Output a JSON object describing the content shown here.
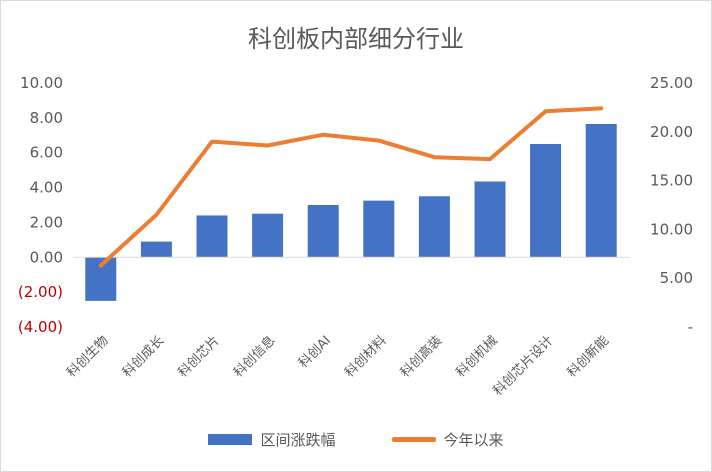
{
  "chart_data": {
    "type": "bar",
    "title": "科创板内部细分行业",
    "categories": [
      "科创生物",
      "科创成长",
      "科创芯片",
      "科创信息",
      "科创AI",
      "科创材料",
      "科创高装",
      "科创机械",
      "科创芯片设计",
      "科创新能"
    ],
    "series": [
      {
        "name": "区间涨跌幅",
        "type": "bar",
        "axis": "left",
        "color": "#4472C4",
        "values": [
          -2.5,
          0.9,
          2.4,
          2.5,
          3.0,
          3.25,
          3.5,
          4.35,
          6.5,
          7.65
        ]
      },
      {
        "name": "今年以来",
        "type": "line",
        "axis": "right",
        "color": "#ED7D31",
        "values": [
          6.3,
          11.5,
          19.0,
          18.6,
          19.7,
          19.1,
          17.4,
          17.2,
          22.1,
          22.4
        ]
      }
    ],
    "y_left": {
      "ylim": [
        -4,
        10
      ],
      "ticks": [
        10,
        8,
        6,
        4,
        2,
        0,
        -2,
        -4
      ],
      "tick_labels": [
        "10.00",
        "8.00",
        "6.00",
        "4.00",
        "2.00",
        "0.00",
        "(2.00)",
        "(4.00)"
      ],
      "negative_label_color": "#C00000"
    },
    "y_right": {
      "ylim": [
        0,
        25
      ],
      "ticks": [
        25,
        20,
        15,
        10,
        5,
        0
      ],
      "tick_labels": [
        "25.00",
        "20.00",
        "15.00",
        "10.00",
        "5.00",
        "-"
      ]
    },
    "grid": false,
    "legend_position": "bottom"
  }
}
